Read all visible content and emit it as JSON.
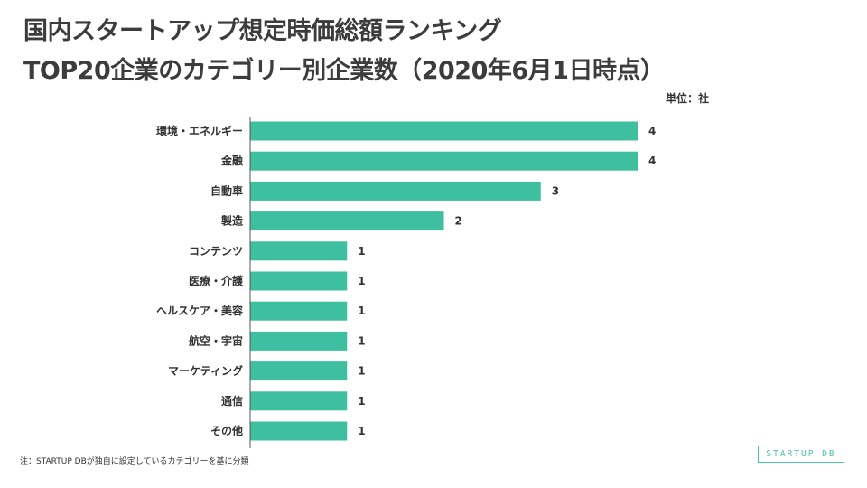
{
  "title_line1": "国内スタートアップ想定時価総額ランキング",
  "title_line2": "TOP20企業のカテゴリー別企業数（2020年6月1日時点）",
  "unit": "単位：社",
  "footnote": "注：STARTUP DBが独自に設定しているカテゴリーを基に分類",
  "logo": "STARTUP DB",
  "chart_data": {
    "type": "bar",
    "orientation": "horizontal",
    "title": "TOP20企業のカテゴリー別企業数（2020年6月1日時点）",
    "unit": "単位：社",
    "categories": [
      "環境・エネルギー",
      "金融",
      "自動車",
      "製造",
      "コンテンツ",
      "医療・介護",
      "ヘルスケア・美容",
      "航空・宇宙",
      "マーケティング",
      "通信",
      "その他"
    ],
    "values": [
      4,
      4,
      3,
      2,
      1,
      1,
      1,
      1,
      1,
      1,
      1
    ],
    "bar_color": "#3dbfa0",
    "xlim": [
      0,
      4
    ],
    "grid": false,
    "data_labels": true
  }
}
